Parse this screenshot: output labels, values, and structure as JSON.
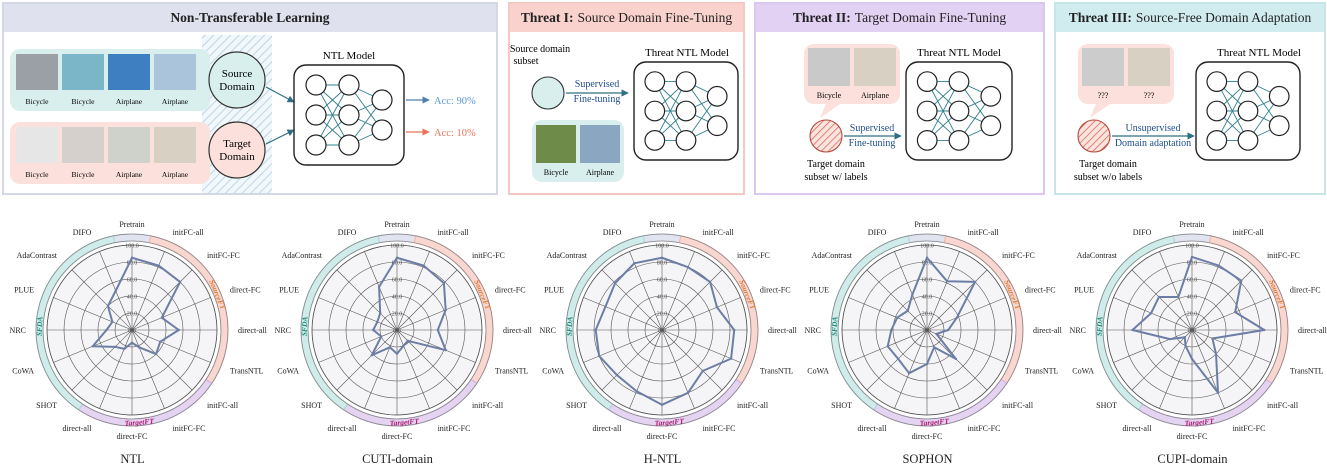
{
  "panels": [
    {
      "title_bold": "Non-Transferable Learning",
      "title_rest": ""
    },
    {
      "title_bold": "Threat I:",
      "title_rest": "Source Domain Fine-Tuning"
    },
    {
      "title_bold": "Threat II:",
      "title_rest": "Target Domain Fine-Tuning"
    },
    {
      "title_bold": "Threat III:",
      "title_rest": "Source-Free Domain Adaptation"
    }
  ],
  "ntl_panel": {
    "source_domain": "Source Domain",
    "target_domain": "Target Domain",
    "model_label": "NTL Model",
    "acc_source": "Acc: 90%",
    "acc_target": "Acc: 10%",
    "source_images": [
      "Bicycle",
      "Bicycle",
      "Airplane",
      "Airplane"
    ],
    "target_images": [
      "Bicycle",
      "Bicycle",
      "Airplane",
      "Airplane"
    ]
  },
  "threat1": {
    "subset_label": "Source domain subset",
    "arrow_label": "Supervised Fine-tuning",
    "model_label": "Threat NTL Model",
    "images": [
      "Bicycle",
      "Airplane"
    ]
  },
  "threat2": {
    "subset_label": "Target domain subset w/ labels",
    "arrow_label": "Supervised Fine-tuning",
    "model_label": "Threat NTL Model",
    "images": [
      "Bicycle",
      "Airplane"
    ]
  },
  "threat3": {
    "subset_label": "Target domain subset w/o labels",
    "arrow_label": "Unsupervised Domain adaptation",
    "model_label": "Threat NTL Model",
    "images": [
      "???",
      "???"
    ]
  },
  "colors": {
    "source_ft": "#f5b5ac",
    "target_ft": "#cdb0e6",
    "sfda": "#a8dcd9",
    "pretrain": "#c9cde3",
    "radar_line": "#6c7ea6",
    "acc_source": "#5b9bd5",
    "acc_target": "#e8735a"
  },
  "chart_data": {
    "type": "radar",
    "axes": [
      "Pretrain",
      "initFC-all",
      "initFC-FC",
      "direct-FC",
      "direct-all",
      "TransNTL",
      "initFC-all",
      "initFC-FC",
      "direct-FC",
      "direct-all",
      "SHOT",
      "CoWA",
      "NRC",
      "PLUE",
      "AdaContrast",
      "DIFO"
    ],
    "rlim": [
      0,
      100
    ],
    "ticks": [
      "0.0",
      "20.0",
      "40.0",
      "60.0",
      "80.0",
      "100.0"
    ],
    "group_labels": {
      "source": "SourceFT",
      "target": "TargetFT",
      "sfda": "SFDA"
    },
    "charts": [
      {
        "title": "NTL",
        "values": [
          85,
          82,
          80,
          38,
          55,
          36,
          40,
          22,
          15,
          24,
          28,
          50,
          30,
          25,
          40,
          50
        ]
      },
      {
        "title": "CUTI-domain",
        "values": [
          85,
          82,
          78,
          62,
          48,
          62,
          18,
          20,
          28,
          22,
          42,
          20,
          28,
          25,
          28,
          55
        ]
      },
      {
        "title": "H-NTL",
        "values": [
          85,
          80,
          80,
          70,
          85,
          88,
          68,
          80,
          88,
          78,
          75,
          80,
          78,
          72,
          78,
          85
        ]
      },
      {
        "title": "SOPHON",
        "values": [
          85,
          62,
          80,
          38,
          25,
          12,
          48,
          22,
          40,
          55,
          48,
          50,
          42,
          38,
          32,
          45
        ]
      },
      {
        "title": "CUPI-domain",
        "values": [
          86,
          82,
          82,
          55,
          85,
          26,
          40,
          80,
          34,
          20,
          12,
          28,
          70,
          52,
          55,
          42
        ]
      }
    ]
  }
}
